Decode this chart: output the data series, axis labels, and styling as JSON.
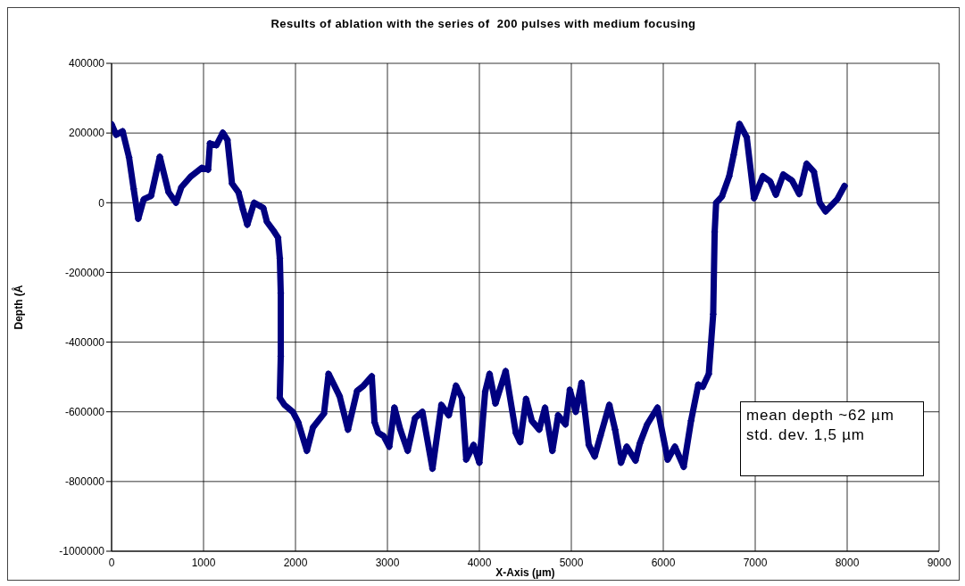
{
  "chart_data": {
    "type": "line",
    "title": "Results of ablation with the series of  200 pulses with medium focusing",
    "xlabel": "X-Axis (µm)",
    "ylabel": "Depth (Å",
    "annotations": [
      "mean depth ~62 µm",
      "std. dev. 1,5 µm"
    ],
    "xlim": [
      0,
      9000
    ],
    "xticks": [
      0,
      1000,
      2000,
      3000,
      4000,
      5000,
      6000,
      7000,
      8000,
      9000
    ],
    "ylim": [
      -1000000,
      400000
    ],
    "yticks": [
      -1000000,
      -800000,
      -600000,
      -400000,
      -200000,
      0,
      200000,
      400000
    ],
    "grid": true,
    "marker": "diamond",
    "series": [
      {
        "color": "#000080",
        "x": [
          0,
          50,
          120,
          190,
          240,
          290,
          350,
          430,
          524,
          620,
          700,
          760,
          860,
          980,
          1050,
          1070,
          1140,
          1210,
          1260,
          1310,
          1380,
          1430,
          1476,
          1550,
          1650,
          1690,
          1760,
          1810,
          1830,
          1840,
          1840,
          1829,
          1880,
          1970,
          2030,
          2124,
          2190,
          2310,
          2360,
          2480,
          2571,
          2670,
          2740,
          2830,
          2860,
          2900,
          2960,
          3020,
          3076,
          3140,
          3220,
          3300,
          3380,
          3490,
          3587,
          3667,
          3746,
          3810,
          3857,
          3937,
          4000,
          4063,
          4111,
          4175,
          4286,
          4397,
          4444,
          4508,
          4571,
          4651,
          4714,
          4794,
          4857,
          4937,
          4984,
          5048,
          5111,
          5190,
          5254,
          5317,
          5413,
          5476,
          5540,
          5603,
          5698,
          5746,
          5825,
          5937,
          6048,
          6127,
          6222,
          6302,
          6381,
          6430,
          6495,
          6543,
          6559,
          6575,
          6638,
          6717,
          6765,
          6829,
          6908,
          6987,
          7083,
          7162,
          7225,
          7305,
          7400,
          7479,
          7559,
          7638,
          7702,
          7765,
          7892,
          7971
        ],
        "values": [
          225000,
          195000,
          205000,
          130000,
          40000,
          -46000,
          10000,
          20000,
          132000,
          30000,
          0,
          45000,
          75000,
          100000,
          95000,
          170000,
          165000,
          201000,
          180000,
          55000,
          30000,
          -20000,
          -63000,
          0,
          -15000,
          -55000,
          -80000,
          -100000,
          -160000,
          -260000,
          -440000,
          -560000,
          -580000,
          -600000,
          -630000,
          -712000,
          -645000,
          -605000,
          -491000,
          -555000,
          -651000,
          -540000,
          -525000,
          -498000,
          -630000,
          -660000,
          -670000,
          -700000,
          -588000,
          -651000,
          -712000,
          -618000,
          -600000,
          -763000,
          -580000,
          -610000,
          -525000,
          -560000,
          -737000,
          -695000,
          -746000,
          -542000,
          -491000,
          -576000,
          -483000,
          -661000,
          -687000,
          -563000,
          -626000,
          -651000,
          -588000,
          -712000,
          -610000,
          -636000,
          -537000,
          -600000,
          -517000,
          -695000,
          -728000,
          -669000,
          -580000,
          -651000,
          -746000,
          -700000,
          -740000,
          -690000,
          -636000,
          -588000,
          -737000,
          -700000,
          -758000,
          -626000,
          -522000,
          -528000,
          -491000,
          -320000,
          -84000,
          0,
          18000,
          76000,
          137000,
          226000,
          188000,
          13000,
          76000,
          61000,
          23000,
          81000,
          64000,
          25000,
          112000,
          89000,
          0,
          -25000,
          10000,
          48000
        ]
      }
    ]
  }
}
